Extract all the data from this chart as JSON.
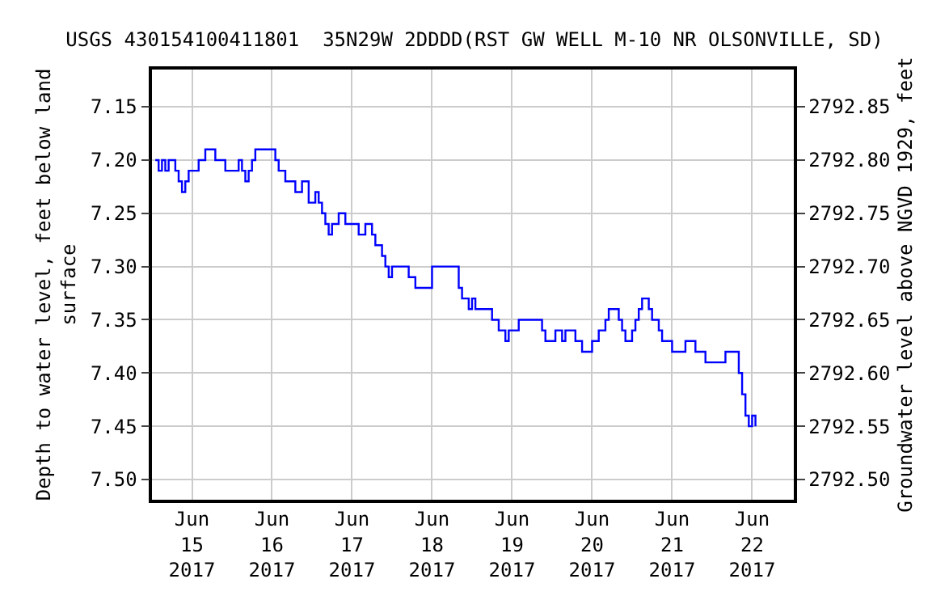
{
  "chart_data": {
    "type": "step",
    "title": "USGS 430154100411801  35N29W 2DDDD(RST GW WELL M-10 NR OLSONVILLE, SD)",
    "ylabel": "Depth to water level, feet below land\nsurface",
    "y2label": "Groundwater level above NGVD 1929, feet",
    "x": [
      "2017-06-14T13:00",
      "2017-06-14T14:00",
      "2017-06-14T15:00",
      "2017-06-14T16:00",
      "2017-06-14T17:00",
      "2017-06-14T19:00",
      "2017-06-14T20:00",
      "2017-06-14T21:00",
      "2017-06-14T22:00",
      "2017-06-14T23:00",
      "2017-06-15T01:00",
      "2017-06-15T02:00",
      "2017-06-15T04:00",
      "2017-06-15T06:00",
      "2017-06-15T07:00",
      "2017-06-15T09:00",
      "2017-06-15T10:00",
      "2017-06-15T13:00",
      "2017-06-15T14:00",
      "2017-06-15T15:00",
      "2017-06-15T16:00",
      "2017-06-15T17:00",
      "2017-06-15T18:00",
      "2017-06-15T19:00",
      "2017-06-16T00:00",
      "2017-06-16T01:00",
      "2017-06-16T02:00",
      "2017-06-16T04:00",
      "2017-06-16T06:00",
      "2017-06-16T07:00",
      "2017-06-16T08:00",
      "2017-06-16T09:00",
      "2017-06-16T11:00",
      "2017-06-16T13:00",
      "2017-06-16T14:00",
      "2017-06-16T15:00",
      "2017-06-16T16:00",
      "2017-06-16T17:00",
      "2017-06-16T18:00",
      "2017-06-16T20:00",
      "2017-06-16T22:00",
      "2017-06-17T02:00",
      "2017-06-17T04:00",
      "2017-06-17T06:00",
      "2017-06-17T07:00",
      "2017-06-17T09:00",
      "2017-06-17T10:00",
      "2017-06-17T11:00",
      "2017-06-17T12:00",
      "2017-06-17T16:00",
      "2017-06-17T17:00",
      "2017-06-17T19:00",
      "2017-06-17T23:00",
      "2017-06-18T00:00",
      "2017-06-18T01:00",
      "2017-06-18T07:00",
      "2017-06-18T08:00",
      "2017-06-18T09:00",
      "2017-06-18T11:00",
      "2017-06-18T12:00",
      "2017-06-18T13:00",
      "2017-06-18T17:00",
      "2017-06-18T18:00",
      "2017-06-18T20:00",
      "2017-06-18T21:00",
      "2017-06-18T22:00",
      "2017-06-18T23:00",
      "2017-06-19T01:00",
      "2017-06-19T02:00",
      "2017-06-19T08:00",
      "2017-06-19T09:00",
      "2017-06-19T10:00",
      "2017-06-19T12:00",
      "2017-06-19T13:00",
      "2017-06-19T15:00",
      "2017-06-19T16:00",
      "2017-06-19T18:00",
      "2017-06-19T19:00",
      "2017-06-19T21:00",
      "2017-06-19T22:00",
      "2017-06-20T00:00",
      "2017-06-20T02:00",
      "2017-06-20T04:00",
      "2017-06-20T05:00",
      "2017-06-20T07:00",
      "2017-06-20T08:00",
      "2017-06-20T09:00",
      "2017-06-20T10:00",
      "2017-06-20T12:00",
      "2017-06-20T13:00",
      "2017-06-20T14:00",
      "2017-06-20T15:00",
      "2017-06-20T17:00",
      "2017-06-20T18:00",
      "2017-06-20T20:00",
      "2017-06-20T21:00",
      "2017-06-21T00:00",
      "2017-06-21T04:00",
      "2017-06-21T07:00",
      "2017-06-21T10:00",
      "2017-06-21T15:00",
      "2017-06-21T16:00",
      "2017-06-21T19:00",
      "2017-06-21T20:00",
      "2017-06-21T21:00",
      "2017-06-21T22:00",
      "2017-06-21T23:00",
      "2017-06-22T00:00",
      "2017-06-22T01:00"
    ],
    "series": [
      {
        "color": "#0000ff",
        "values": [
          7.2,
          7.21,
          7.2,
          7.21,
          7.2,
          7.21,
          7.22,
          7.23,
          7.22,
          7.21,
          7.21,
          7.2,
          7.19,
          7.19,
          7.2,
          7.2,
          7.21,
          7.21,
          7.2,
          7.21,
          7.22,
          7.21,
          7.2,
          7.19,
          7.19,
          7.2,
          7.21,
          7.22,
          7.22,
          7.23,
          7.23,
          7.22,
          7.24,
          7.23,
          7.24,
          7.25,
          7.26,
          7.27,
          7.26,
          7.25,
          7.26,
          7.27,
          7.26,
          7.27,
          7.28,
          7.29,
          7.3,
          7.31,
          7.3,
          7.3,
          7.31,
          7.32,
          7.32,
          7.3,
          7.3,
          7.3,
          7.32,
          7.33,
          7.34,
          7.33,
          7.34,
          7.34,
          7.35,
          7.36,
          7.36,
          7.37,
          7.36,
          7.36,
          7.35,
          7.35,
          7.36,
          7.37,
          7.37,
          7.36,
          7.37,
          7.36,
          7.36,
          7.37,
          7.38,
          7.38,
          7.37,
          7.36,
          7.35,
          7.34,
          7.34,
          7.35,
          7.36,
          7.37,
          7.36,
          7.35,
          7.34,
          7.33,
          7.34,
          7.35,
          7.36,
          7.37,
          7.38,
          7.37,
          7.38,
          7.39,
          7.39,
          7.38,
          7.38,
          7.4,
          7.42,
          7.44,
          7.45,
          7.44,
          7.45
        ]
      }
    ],
    "xlim": [
      "2017-06-14T12:00",
      "2017-06-22T12:30"
    ],
    "xticks": [
      {
        "value": "2017-06-15",
        "label": "Jun\n15\n2017"
      },
      {
        "value": "2017-06-16",
        "label": "Jun\n16\n2017"
      },
      {
        "value": "2017-06-17",
        "label": "Jun\n17\n2017"
      },
      {
        "value": "2017-06-18",
        "label": "Jun\n18\n2017"
      },
      {
        "value": "2017-06-19",
        "label": "Jun\n19\n2017"
      },
      {
        "value": "2017-06-20",
        "label": "Jun\n20\n2017"
      },
      {
        "value": "2017-06-21",
        "label": "Jun\n21\n2017"
      },
      {
        "value": "2017-06-22",
        "label": "Jun\n22\n2017"
      }
    ],
    "ylim": [
      7.519,
      7.115
    ],
    "yticks": [
      7.15,
      {
        "value": 7.2,
        "label": "7.20"
      },
      7.25,
      {
        "value": 7.3,
        "label": "7.30"
      },
      7.35,
      {
        "value": 7.4,
        "label": "7.40"
      },
      7.45,
      {
        "value": 7.5,
        "label": "7.50"
      }
    ],
    "y2lim": [
      2792.481,
      2792.885
    ],
    "y2ticks": [
      {
        "value": 2792.5,
        "label": "2792.50"
      },
      2792.55,
      {
        "value": 2792.6,
        "label": "2792.60"
      },
      2792.65,
      {
        "value": 2792.7,
        "label": "2792.70"
      },
      2792.75,
      {
        "value": 2792.8,
        "label": "2792.80"
      },
      2792.85
    ],
    "grid": true,
    "line_style": "solid",
    "marker": "none"
  }
}
